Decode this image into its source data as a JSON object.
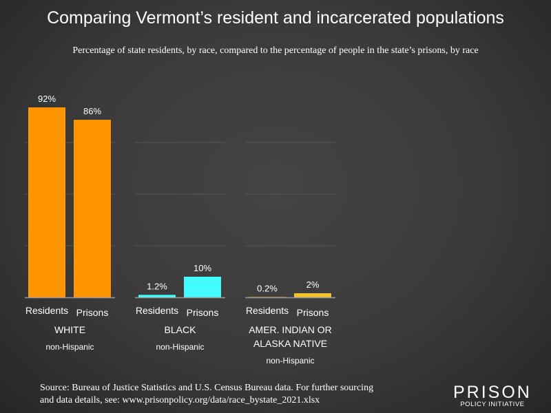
{
  "title": "Comparing Vermont’s resident and incarcerated populations",
  "subtitle": "Percentage of state residents, by race, compared to the percentage of people in the state’s prisons, by race",
  "chart_data": {
    "type": "bar",
    "ylim": [
      0,
      100
    ],
    "gridlines": [
      25,
      50,
      75
    ],
    "grid": true,
    "groups": [
      {
        "name": "WHITE",
        "sublabel": "non-Hispanic",
        "color": "#FF9500",
        "bars": [
          {
            "label": "Residents",
            "value": 92,
            "display": "92%"
          },
          {
            "label": "Prisons",
            "value": 86,
            "display": "86%"
          }
        ]
      },
      {
        "name": "BLACK",
        "sublabel": "non-Hispanic",
        "color": "#44FBFF",
        "bars": [
          {
            "label": "Residents",
            "value": 1.2,
            "display": "1.2%"
          },
          {
            "label": "Prisons",
            "value": 10,
            "display": "10%"
          }
        ]
      },
      {
        "name": "AMER. INDIAN OR\nALASKA NATIVE",
        "sublabel": "non-Hispanic",
        "color": "#F5BE2E",
        "bars": [
          {
            "label": "Residents",
            "value": 0.2,
            "display": "0.2%"
          },
          {
            "label": "Prisons",
            "value": 2,
            "display": "2%"
          }
        ]
      }
    ]
  },
  "source": "Source: Bureau of Justice Statistics and U.S. Census Bureau data. For further sourcing and data details, see: www.prisonpolicy.org/data/race_bystate_2021.xlsx",
  "logo": {
    "line1": "PRISON",
    "line2": "POLICY INITIATIVE"
  }
}
